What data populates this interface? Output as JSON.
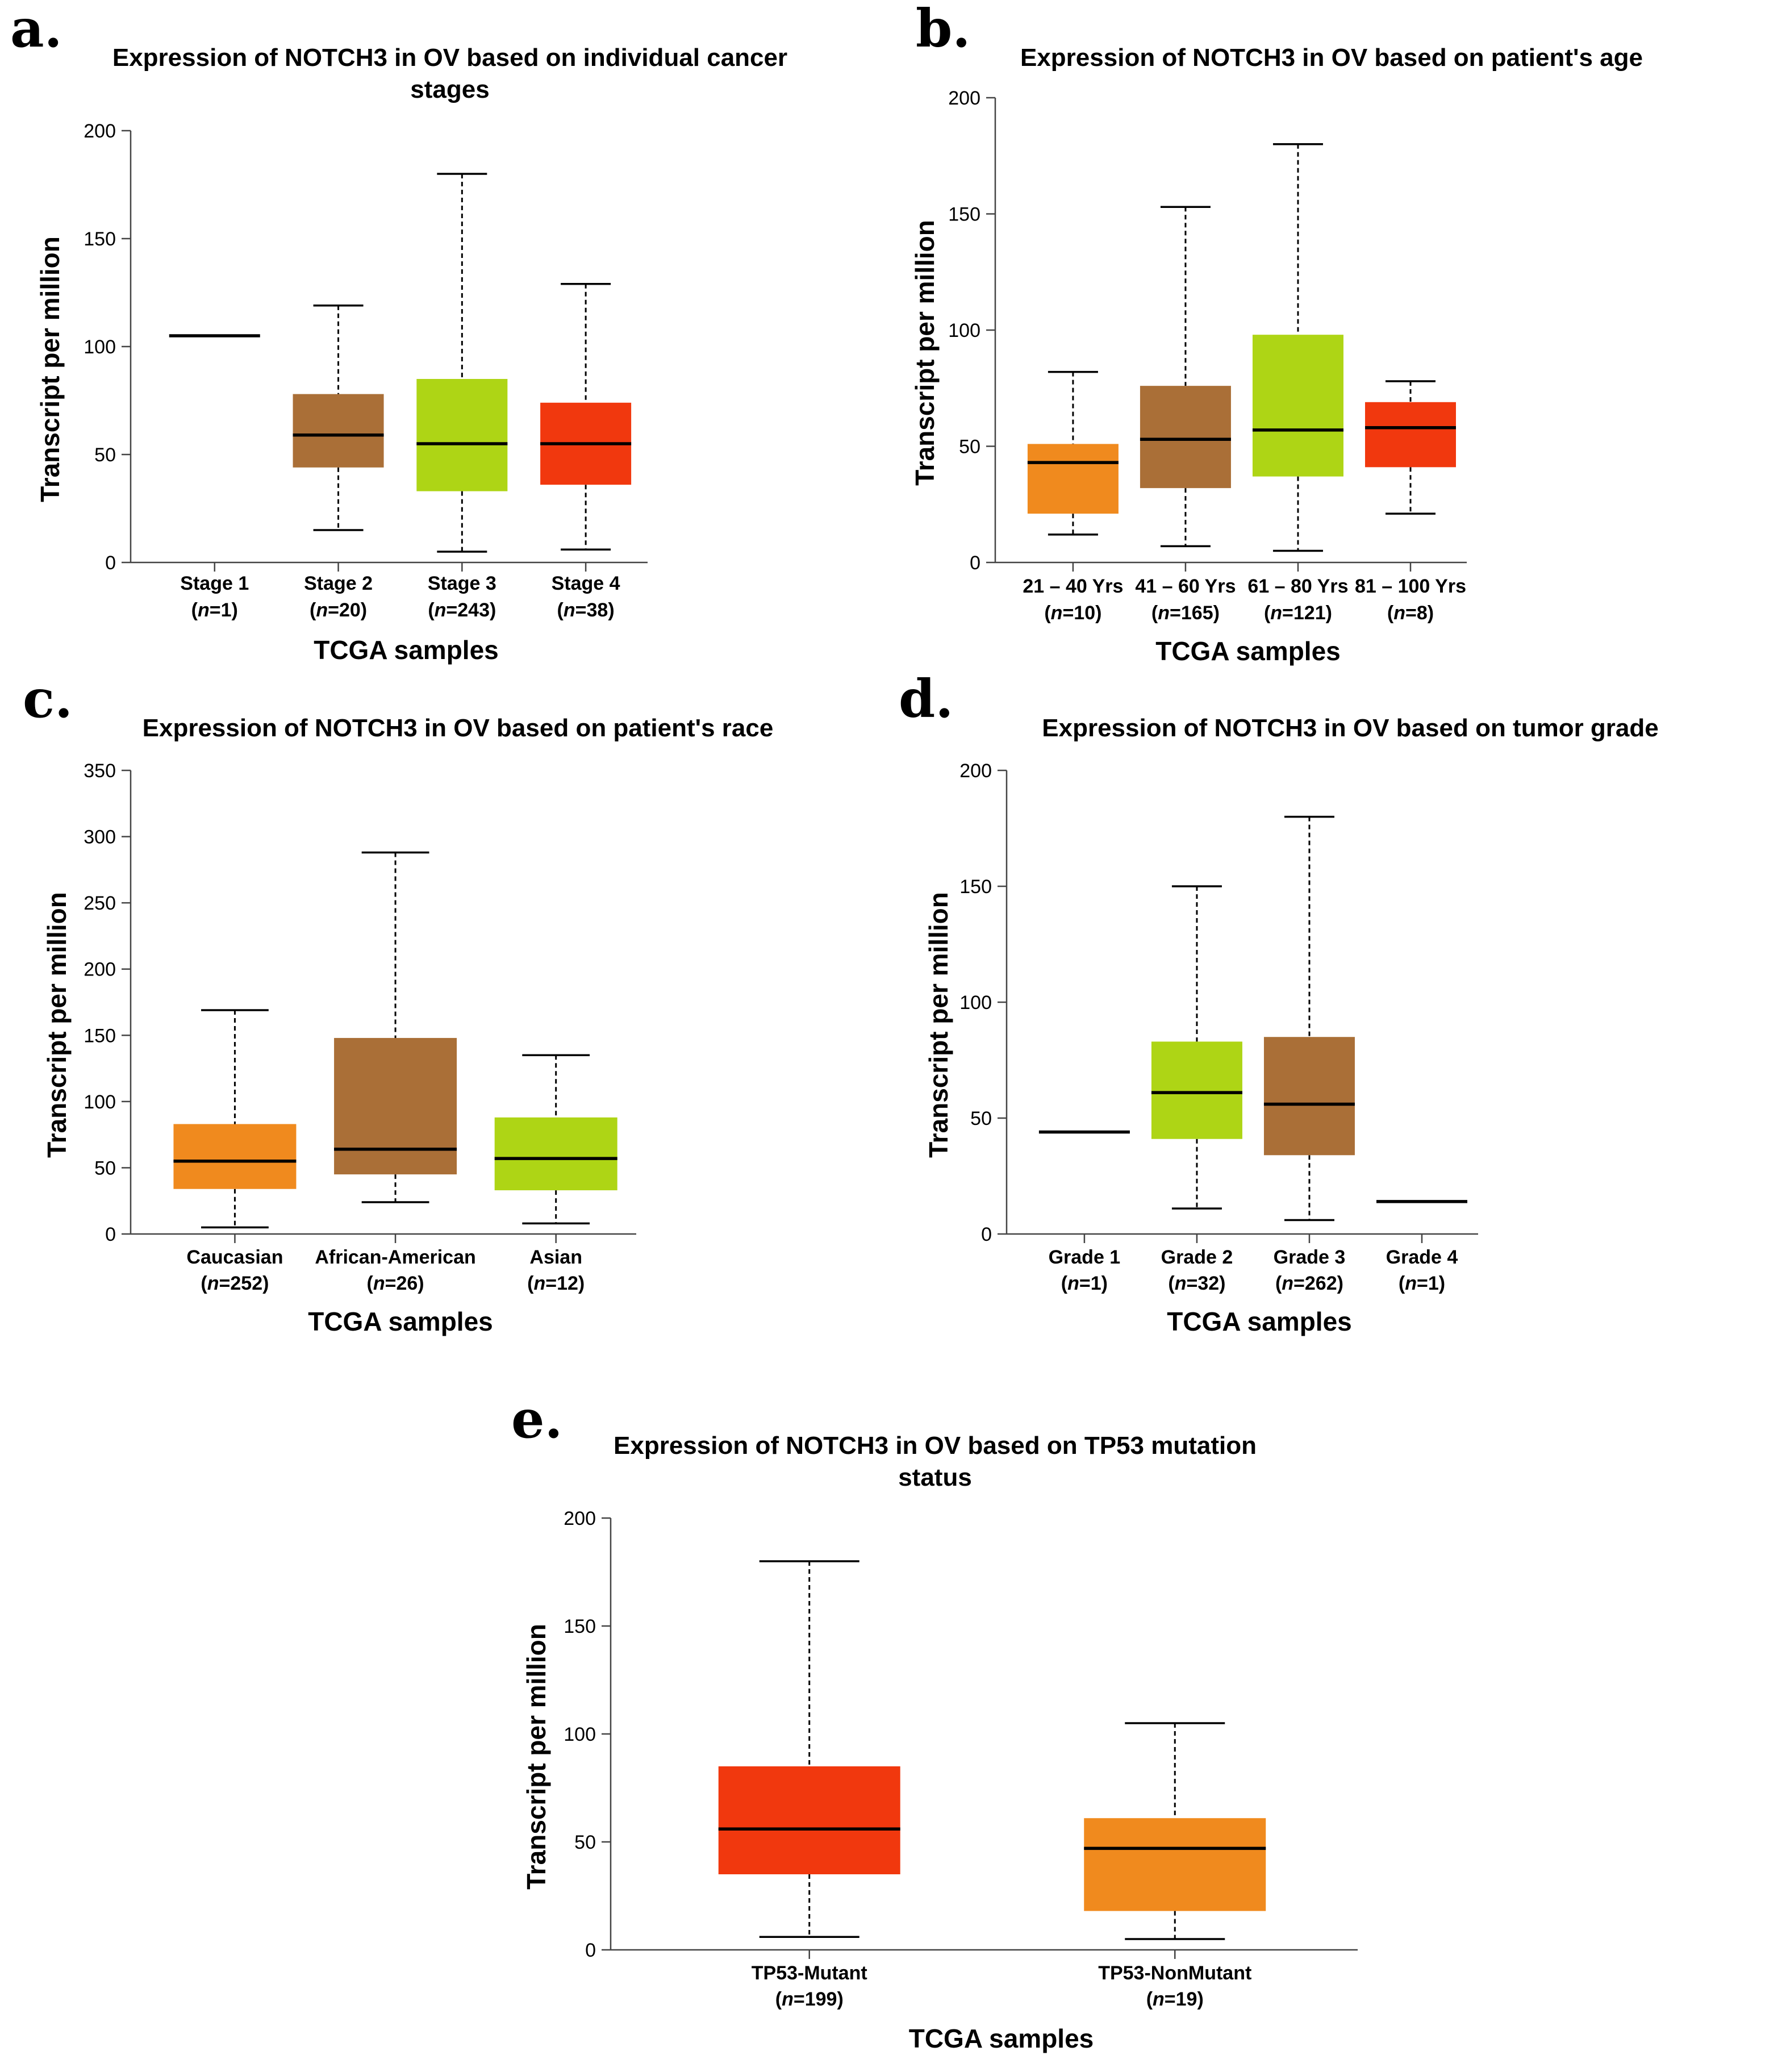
{
  "chart_data": [
    {
      "type": "box",
      "letter": "a.",
      "title_lines": [
        "Expression of NOTCH3 in OV based on individual cancer",
        "stages"
      ],
      "xlabel": "TCGA samples",
      "ylabel": "Transcript per million",
      "ylim": [
        0,
        200
      ],
      "yticks": [
        0,
        50,
        100,
        150,
        200
      ],
      "categories": [
        {
          "name": "Stage 1",
          "n_label": "n",
          "n_value": "=1",
          "open": "(",
          "close": ")",
          "color": null,
          "min": 105,
          "q1": 105,
          "median": 105,
          "q3": 105,
          "max": 105
        },
        {
          "name": "Stage 2",
          "n_label": "n",
          "n_value": "=20",
          "open": "(",
          "close": ")",
          "color": "#AA6F37",
          "min": 15,
          "q1": 44,
          "median": 59,
          "q3": 78,
          "max": 119
        },
        {
          "name": "Stage 3",
          "n_label": "n",
          "n_value": "=243",
          "open": "(",
          "close": ")",
          "color": "#AED515",
          "min": 5,
          "q1": 33,
          "median": 55,
          "q3": 85,
          "max": 180
        },
        {
          "name": "Stage 4",
          "n_label": "n",
          "n_value": "=38",
          "open": "(",
          "close": ")",
          "color": "#F1380E",
          "min": 6,
          "q1": 36,
          "median": 55,
          "q3": 74,
          "max": 129
        }
      ]
    },
    {
      "type": "box",
      "letter": "b.",
      "title_lines": [
        "Expression of NOTCH3 in OV based on patient's age"
      ],
      "xlabel": "TCGA samples",
      "ylabel": "Transcript per million",
      "ylim": [
        0,
        200
      ],
      "yticks": [
        0,
        50,
        100,
        150,
        200
      ],
      "categories": [
        {
          "name": "21 – 40 Yrs",
          "n_label": "n",
          "n_value": "=10",
          "open": "(",
          "close": ")",
          "color": "#F08A1E",
          "min": 12,
          "q1": 21,
          "median": 43,
          "q3": 51,
          "max": 82
        },
        {
          "name": "41 – 60 Yrs",
          "n_label": "n",
          "n_value": "=165",
          "open": "(",
          "close": ")",
          "color": "#AA6F37",
          "min": 7,
          "q1": 32,
          "median": 53,
          "q3": 76,
          "max": 153
        },
        {
          "name": "61 – 80 Yrs",
          "n_label": "n",
          "n_value": "=121",
          "open": "(",
          "close": ")",
          "color": "#AED515",
          "min": 5,
          "q1": 37,
          "median": 57,
          "q3": 98,
          "max": 180
        },
        {
          "name": "81 – 100 Yrs",
          "n_label": "n",
          "n_value": "=8",
          "open": "(",
          "close": ")",
          "color": "#F1380E",
          "min": 21,
          "q1": 41,
          "median": 58,
          "q3": 69,
          "max": 78
        }
      ]
    },
    {
      "type": "box",
      "letter": "c.",
      "title_lines": [
        "Expression of NOTCH3 in OV based on patient's race"
      ],
      "xlabel": "TCGA samples",
      "ylabel": "Transcript per million",
      "ylim": [
        0,
        350
      ],
      "yticks": [
        0,
        50,
        100,
        150,
        200,
        250,
        300,
        350
      ],
      "categories": [
        {
          "name": "Caucasian",
          "n_label": "n",
          "n_value": "=252",
          "open": "(",
          "close": ")",
          "color": "#F08A1E",
          "min": 5,
          "q1": 34,
          "median": 55,
          "q3": 83,
          "max": 169
        },
        {
          "name": "African-American",
          "n_label": "n",
          "n_value": "=26",
          "open": "(",
          "close": ")",
          "color": "#AA6F37",
          "min": 24,
          "q1": 45,
          "median": 64,
          "q3": 148,
          "max": 288
        },
        {
          "name": "Asian",
          "n_label": "n",
          "n_value": "=12",
          "open": "(",
          "close": ")",
          "color": "#AED515",
          "min": 8,
          "q1": 33,
          "median": 57,
          "q3": 88,
          "max": 135
        }
      ]
    },
    {
      "type": "box",
      "letter": "d.",
      "title_lines": [
        "Expression of NOTCH3 in OV based on tumor grade"
      ],
      "xlabel": "TCGA samples",
      "ylabel": "Transcript per million",
      "ylim": [
        0,
        200
      ],
      "yticks": [
        0,
        50,
        100,
        150,
        200
      ],
      "categories": [
        {
          "name": "Grade 1",
          "n_label": "n",
          "n_value": "=1",
          "open": "(",
          "close": ")",
          "color": null,
          "min": 44,
          "q1": 44,
          "median": 44,
          "q3": 44,
          "max": 44
        },
        {
          "name": "Grade 2",
          "n_label": "n",
          "n_value": "=32",
          "open": "(",
          "close": ")",
          "color": "#AED515",
          "min": 11,
          "q1": 41,
          "median": 61,
          "q3": 83,
          "max": 150
        },
        {
          "name": "Grade 3",
          "n_label": "n",
          "n_value": "=262",
          "open": "(",
          "close": ")",
          "color": "#AA6F37",
          "min": 6,
          "q1": 34,
          "median": 56,
          "q3": 85,
          "max": 180
        },
        {
          "name": "Grade 4",
          "n_label": "n",
          "n_value": "=1",
          "open": "(",
          "close": ")",
          "color": null,
          "min": 14,
          "q1": 14,
          "median": 14,
          "q3": 14,
          "max": 14
        }
      ]
    },
    {
      "type": "box",
      "letter": "e.",
      "title_lines": [
        "Expression of NOTCH3 in OV based on TP53 mutation",
        "status"
      ],
      "xlabel": "TCGA samples",
      "ylabel": "Transcript per million",
      "ylim": [
        0,
        200
      ],
      "yticks": [
        0,
        50,
        100,
        150,
        200
      ],
      "categories": [
        {
          "name": "TP53-Mutant",
          "n_label": "n",
          "n_value": "=199",
          "open": "(",
          "close": ")",
          "color": "#F1380E",
          "min": 6,
          "q1": 35,
          "median": 56,
          "q3": 85,
          "max": 180
        },
        {
          "name": "TP53-NonMutant",
          "n_label": "n",
          "n_value": "=19",
          "open": "(",
          "close": ")",
          "color": "#F08A1E",
          "min": 5,
          "q1": 18,
          "median": 47,
          "q3": 61,
          "max": 105
        }
      ]
    }
  ]
}
